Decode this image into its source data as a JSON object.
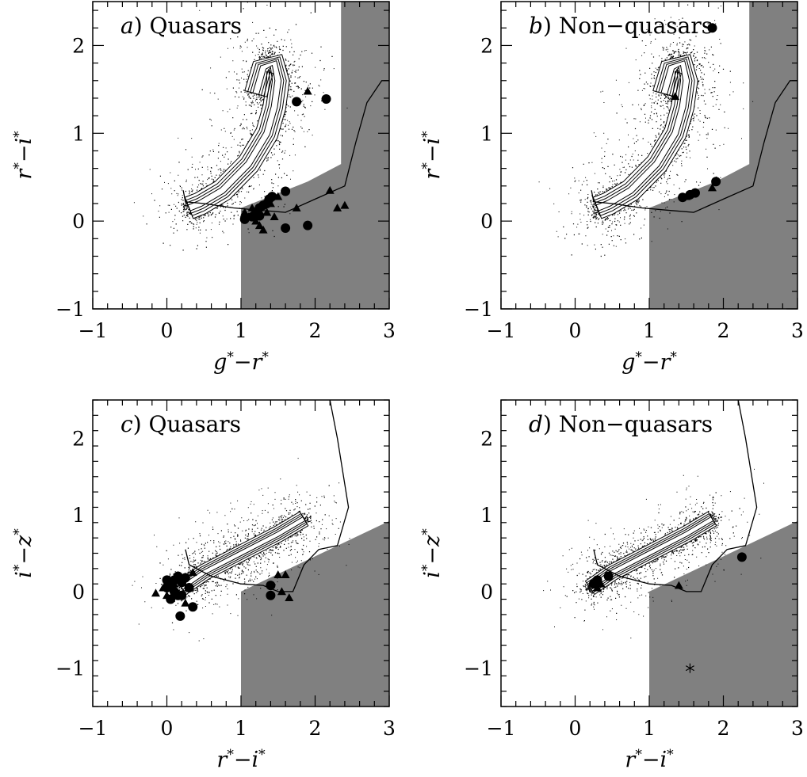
{
  "chart_data": [
    {
      "type": "scatter",
      "panel": "a",
      "title_letter": "a",
      "title": ") Quasars",
      "xlabel": "g*−r*",
      "ylabel": "r*−i*",
      "xlim": [
        -1,
        3
      ],
      "ylim": [
        -1,
        2.5
      ],
      "xticks": [
        "−1",
        "0",
        "1",
        "2",
        "3"
      ],
      "yticks": [
        "−1",
        "0",
        "1",
        "2"
      ],
      "stellar_locus": {
        "curve": [
          [
            0.3,
            0.15
          ],
          [
            0.45,
            0.2
          ],
          [
            0.75,
            0.35
          ],
          [
            1.1,
            0.65
          ],
          [
            1.35,
            1.0
          ],
          [
            1.45,
            1.3
          ],
          [
            1.5,
            1.6
          ],
          [
            1.45,
            1.8
          ],
          [
            1.3,
            1.75
          ],
          [
            1.2,
            1.45
          ]
        ],
        "spread": 0.07
      },
      "selection_region": [
        [
          1.0,
          -1.0
        ],
        [
          3.0,
          -1.0
        ],
        [
          3.0,
          2.5
        ],
        [
          2.35,
          2.5
        ],
        [
          2.35,
          0.65
        ],
        [
          1.9,
          0.45
        ],
        [
          1.0,
          0.15
        ]
      ],
      "track": [
        [
          0.22,
          0.35
        ],
        [
          0.25,
          0.22
        ],
        [
          0.5,
          0.2
        ],
        [
          0.9,
          0.15
        ],
        [
          1.3,
          0.12
        ],
        [
          1.6,
          0.1
        ],
        [
          2.0,
          0.25
        ],
        [
          2.4,
          0.4
        ],
        [
          2.55,
          0.9
        ],
        [
          2.7,
          1.35
        ],
        [
          2.9,
          1.6
        ],
        [
          3.0,
          1.6
        ]
      ],
      "circles": [
        [
          1.75,
          1.36
        ],
        [
          2.15,
          1.39
        ],
        [
          1.38,
          0.25
        ],
        [
          1.42,
          0.28
        ],
        [
          1.35,
          0.2
        ],
        [
          1.3,
          0.18
        ],
        [
          1.25,
          0.15
        ],
        [
          1.2,
          0.1
        ],
        [
          1.15,
          0.05
        ],
        [
          1.05,
          0.02
        ],
        [
          1.25,
          0.06
        ],
        [
          1.6,
          0.34
        ],
        [
          1.6,
          -0.08
        ],
        [
          1.9,
          -0.05
        ]
      ],
      "triangles": [
        [
          1.9,
          1.48
        ],
        [
          2.2,
          0.35
        ],
        [
          2.4,
          0.18
        ],
        [
          1.5,
          0.28
        ],
        [
          1.2,
          0.0
        ],
        [
          1.05,
          0.1
        ],
        [
          1.3,
          -0.1
        ],
        [
          1.25,
          -0.05
        ],
        [
          1.35,
          0.1
        ],
        [
          1.45,
          0.05
        ],
        [
          1.75,
          0.15
        ],
        [
          1.15,
          0.15
        ],
        [
          1.1,
          0.05
        ],
        [
          1.4,
          0.2
        ],
        [
          2.3,
          0.15
        ]
      ],
      "stars": []
    },
    {
      "type": "scatter",
      "panel": "b",
      "title_letter": "b",
      "title": ") Non−quasars",
      "xlabel": "g*−r*",
      "ylabel": "r*−i*",
      "xlim": [
        -1,
        3
      ],
      "ylim": [
        -1,
        2.5
      ],
      "xticks": [
        "−1",
        "0",
        "1",
        "2",
        "3"
      ],
      "yticks": [
        "−1",
        "0",
        "1",
        "2"
      ],
      "stellar_locus": {
        "curve": [
          [
            0.3,
            0.15
          ],
          [
            0.45,
            0.2
          ],
          [
            0.75,
            0.35
          ],
          [
            1.1,
            0.65
          ],
          [
            1.35,
            1.0
          ],
          [
            1.45,
            1.3
          ],
          [
            1.5,
            1.6
          ],
          [
            1.45,
            1.8
          ],
          [
            1.3,
            1.75
          ],
          [
            1.2,
            1.45
          ]
        ],
        "spread": 0.07
      },
      "selection_region": [
        [
          1.0,
          -1.0
        ],
        [
          3.0,
          -1.0
        ],
        [
          3.0,
          2.5
        ],
        [
          2.35,
          2.5
        ],
        [
          2.35,
          0.65
        ],
        [
          1.9,
          0.45
        ],
        [
          1.0,
          0.15
        ]
      ],
      "track": [
        [
          0.22,
          0.35
        ],
        [
          0.25,
          0.22
        ],
        [
          0.5,
          0.2
        ],
        [
          0.9,
          0.15
        ],
        [
          1.3,
          0.12
        ],
        [
          1.6,
          0.1
        ],
        [
          2.0,
          0.25
        ],
        [
          2.4,
          0.4
        ],
        [
          2.55,
          0.9
        ],
        [
          2.7,
          1.35
        ],
        [
          2.9,
          1.6
        ],
        [
          3.0,
          1.6
        ]
      ],
      "circles": [
        [
          1.85,
          2.2
        ],
        [
          1.45,
          0.27
        ],
        [
          1.55,
          0.3
        ],
        [
          1.62,
          0.32
        ],
        [
          1.9,
          0.45
        ]
      ],
      "triangles": [
        [
          1.35,
          1.42
        ],
        [
          1.85,
          0.38
        ],
        [
          1.5,
          0.28
        ]
      ],
      "stars": []
    },
    {
      "type": "scatter",
      "panel": "c",
      "title_letter": "c",
      "title": ") Quasars",
      "xlabel": "r*−i*",
      "ylabel": "i*−z*",
      "xlim": [
        -1,
        3
      ],
      "ylim": [
        -1.5,
        2.5
      ],
      "xticks": [
        "−1",
        "0",
        "1",
        "2",
        "3"
      ],
      "yticks": [
        "−1",
        "0",
        "1",
        "2"
      ],
      "stellar_locus": {
        "curve": [
          [
            0.2,
            0.05
          ],
          [
            0.5,
            0.25
          ],
          [
            1.0,
            0.5
          ],
          [
            1.5,
            0.75
          ],
          [
            1.85,
            0.95
          ]
        ],
        "spread": 0.05
      },
      "selection_region": [
        [
          1.0,
          -1.5
        ],
        [
          3.0,
          -1.5
        ],
        [
          3.0,
          0.92
        ],
        [
          1.0,
          0.0
        ]
      ],
      "track": [
        [
          0.25,
          0.55
        ],
        [
          0.3,
          0.35
        ],
        [
          0.6,
          0.2
        ],
        [
          1.0,
          0.1
        ],
        [
          1.3,
          0.08
        ],
        [
          1.5,
          0.0
        ],
        [
          1.7,
          0.0
        ],
        [
          1.85,
          0.35
        ],
        [
          2.05,
          0.55
        ],
        [
          2.3,
          0.6
        ],
        [
          2.45,
          1.1
        ],
        [
          2.3,
          2.0
        ],
        [
          2.2,
          2.5
        ]
      ],
      "circles": [
        [
          0.0,
          0.15
        ],
        [
          0.05,
          0.1
        ],
        [
          0.1,
          0.15
        ],
        [
          0.15,
          0.2
        ],
        [
          0.2,
          0.12
        ],
        [
          0.25,
          0.18
        ],
        [
          0.3,
          0.05
        ],
        [
          0.1,
          0.0
        ],
        [
          0.15,
          -0.05
        ],
        [
          0.05,
          -0.1
        ],
        [
          0.0,
          0.05
        ],
        [
          0.2,
          -0.05
        ],
        [
          0.35,
          -0.2
        ],
        [
          0.18,
          -0.32
        ],
        [
          1.4,
          0.08
        ],
        [
          1.4,
          -0.05
        ]
      ],
      "triangles": [
        [
          -0.15,
          -0.02
        ],
        [
          -0.05,
          0.05
        ],
        [
          0.1,
          0.1
        ],
        [
          0.35,
          0.25
        ],
        [
          0.3,
          0.05
        ],
        [
          0.25,
          -0.15
        ],
        [
          0.0,
          -0.05
        ],
        [
          1.5,
          0.22
        ],
        [
          1.6,
          0.22
        ],
        [
          1.55,
          0.0
        ],
        [
          1.65,
          -0.08
        ]
      ],
      "stars": []
    },
    {
      "type": "scatter",
      "panel": "d",
      "title_letter": "d",
      "title": ") Non−quasars",
      "xlabel": "r*−i*",
      "ylabel": "i*−z*",
      "xlim": [
        -1,
        3
      ],
      "ylim": [
        -1.5,
        2.5
      ],
      "xticks": [
        "−1",
        "0",
        "1",
        "2",
        "3"
      ],
      "yticks": [
        "−1",
        "0",
        "1",
        "2"
      ],
      "stellar_locus": {
        "curve": [
          [
            0.2,
            0.05
          ],
          [
            0.5,
            0.25
          ],
          [
            1.0,
            0.5
          ],
          [
            1.5,
            0.75
          ],
          [
            1.85,
            0.95
          ]
        ],
        "spread": 0.05
      },
      "selection_region": [
        [
          1.0,
          -1.5
        ],
        [
          3.0,
          -1.5
        ],
        [
          3.0,
          0.92
        ],
        [
          1.0,
          0.0
        ]
      ],
      "track": [
        [
          0.25,
          0.55
        ],
        [
          0.3,
          0.35
        ],
        [
          0.6,
          0.2
        ],
        [
          1.0,
          0.1
        ],
        [
          1.3,
          0.08
        ],
        [
          1.5,
          0.0
        ],
        [
          1.7,
          0.0
        ],
        [
          1.85,
          0.35
        ],
        [
          2.05,
          0.55
        ],
        [
          2.3,
          0.6
        ],
        [
          2.45,
          1.1
        ],
        [
          2.3,
          2.0
        ],
        [
          2.2,
          2.5
        ]
      ],
      "circles": [
        [
          0.25,
          0.1
        ],
        [
          0.3,
          0.15
        ],
        [
          0.45,
          0.2
        ],
        [
          2.25,
          0.45
        ]
      ],
      "triangles": [
        [
          0.3,
          0.05
        ],
        [
          0.35,
          0.1
        ],
        [
          1.4,
          0.08
        ]
      ],
      "stars": [
        [
          1.55,
          -1.0
        ]
      ]
    }
  ]
}
